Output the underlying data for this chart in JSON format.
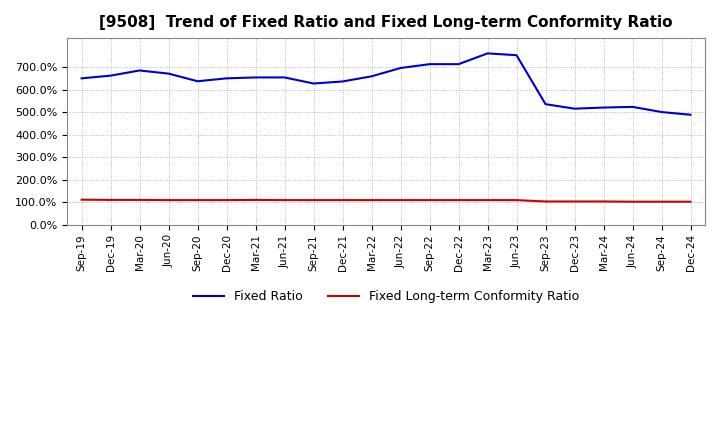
{
  "title": "[9508]  Trend of Fixed Ratio and Fixed Long-term Conformity Ratio",
  "x_labels": [
    "Sep-19",
    "Dec-19",
    "Mar-20",
    "Jun-20",
    "Sep-20",
    "Dec-20",
    "Mar-21",
    "Jun-21",
    "Sep-21",
    "Dec-21",
    "Mar-22",
    "Jun-22",
    "Sep-22",
    "Dec-22",
    "Mar-23",
    "Jun-23",
    "Sep-23",
    "Dec-23",
    "Mar-24",
    "Jun-24",
    "Sep-24",
    "Dec-24"
  ],
  "fixed_ratio": [
    651,
    663,
    686,
    672,
    638,
    651,
    655,
    655,
    628,
    637,
    660,
    697,
    714,
    714,
    762,
    754,
    536,
    516,
    521,
    524,
    501,
    489
  ],
  "fixed_lt_ratio": [
    111,
    110,
    110,
    109,
    109,
    109,
    110,
    109,
    109,
    109,
    109,
    109,
    109,
    109,
    109,
    109,
    103,
    103,
    103,
    102,
    102,
    102
  ],
  "fixed_ratio_color": "#0000CC",
  "fixed_lt_ratio_color": "#CC0000",
  "ylim": [
    0,
    830
  ],
  "yticks": [
    0,
    100,
    200,
    300,
    400,
    500,
    600,
    700
  ],
  "background_color": "#FFFFFF",
  "grid_color": "#AAAAAA",
  "title_fontsize": 11,
  "legend_labels": [
    "Fixed Ratio",
    "Fixed Long-term Conformity Ratio"
  ]
}
